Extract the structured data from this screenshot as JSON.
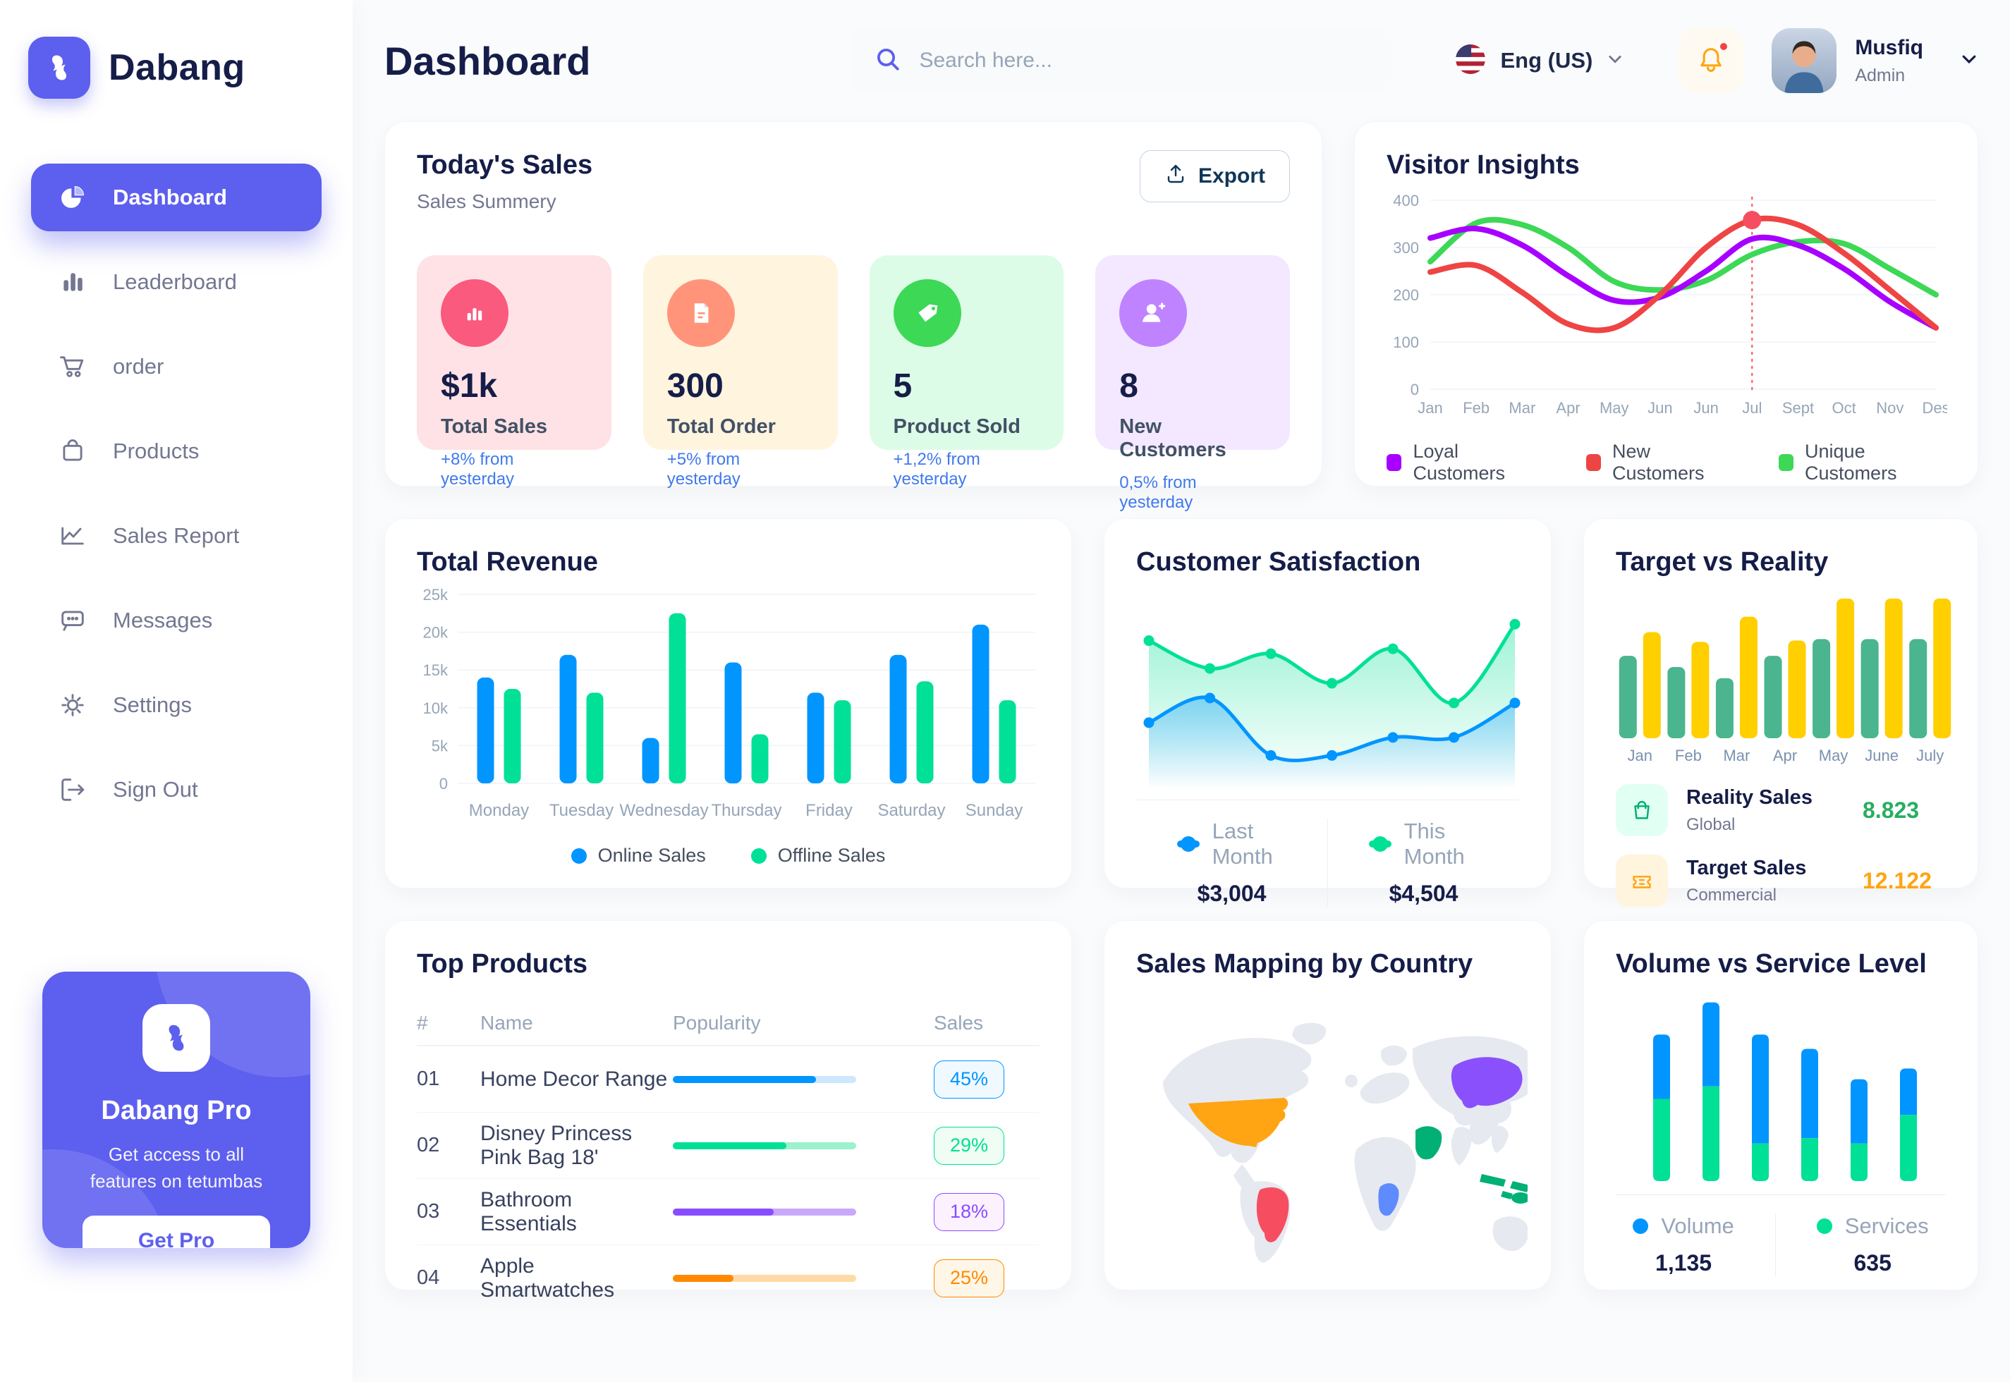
{
  "app": {
    "accent": "#5D5FEF",
    "text_dark": "#151D48",
    "text_gray": "#737791"
  },
  "sidebar": {
    "brand": "Dabang",
    "items": [
      {
        "label": "Dashboard",
        "icon": "pie-chart-icon",
        "active": true
      },
      {
        "label": "Leaderboard",
        "icon": "bar-chart-icon",
        "active": false
      },
      {
        "label": "order",
        "icon": "cart-icon",
        "active": false
      },
      {
        "label": "Products",
        "icon": "bag-icon",
        "active": false
      },
      {
        "label": "Sales Report",
        "icon": "line-chart-icon",
        "active": false
      },
      {
        "label": "Messages",
        "icon": "message-icon",
        "active": false
      },
      {
        "label": "Settings",
        "icon": "gear-icon",
        "active": false
      },
      {
        "label": "Sign Out",
        "icon": "sign-out-icon",
        "active": false
      }
    ],
    "pro_card": {
      "title": "Dabang Pro",
      "description": "Get access to all features on tetumbas",
      "button_label": "Get Pro"
    }
  },
  "header": {
    "title": "Dashboard",
    "search_placeholder": "Search here...",
    "language": "Eng (US)",
    "user_name": "Musfiq",
    "user_role": "Admin"
  },
  "todays_sales": {
    "title": "Today's Sales",
    "subtitle": "Sales Summery",
    "export_label": "Export",
    "stats": [
      {
        "value": "$1k",
        "label": "Total Sales",
        "delta": "+8% from yesterday",
        "bg": "#FFE2E5",
        "icon_bg": "#FA5A7D",
        "icon": "stats-icon"
      },
      {
        "value": "300",
        "label": "Total Order",
        "delta": "+5% from yesterday",
        "bg": "#FFF4DE",
        "icon_bg": "#FF947A",
        "icon": "orders-icon"
      },
      {
        "value": "5",
        "label": "Product Sold",
        "delta": "+1,2% from yesterday",
        "bg": "#DCFCE7",
        "icon_bg": "#3CD856",
        "icon": "tag-icon"
      },
      {
        "value": "8",
        "label": "New Customers",
        "delta": "0,5% from yesterday",
        "bg": "#F3E8FF",
        "icon_bg": "#BF83FF",
        "icon": "new-customer-icon"
      }
    ]
  },
  "visitor_insights": {
    "title": "Visitor Insights"
  },
  "total_revenue": {
    "title": "Total Revenue"
  },
  "customer_satisfaction": {
    "title": "Customer Satisfaction",
    "legend": [
      {
        "label": "Last Month",
        "value": "$3,004",
        "color": "#0095FF"
      },
      {
        "label": "This Month",
        "value": "$4,504",
        "color": "#00E096"
      }
    ]
  },
  "target_vs_reality": {
    "title": "Target vs Reality",
    "legend": [
      {
        "title": "Reality Sales",
        "subtitle": "Global",
        "value": "8.823",
        "value_color": "#27AE60",
        "icon_bg": "#E2FFF3",
        "icon": "shopping-bag-icon"
      },
      {
        "title": "Target Sales",
        "subtitle": "Commercial",
        "value": "12.122",
        "value_color": "#FFA412",
        "icon_bg": "#FFF4DE",
        "icon": "ticket-icon"
      }
    ]
  },
  "top_products": {
    "title": "Top Products",
    "columns": [
      "#",
      "Name",
      "Popularity",
      "Sales"
    ],
    "rows": [
      {
        "num": "01",
        "name": "Home Decor Range",
        "popularity": 78,
        "sales": "45%",
        "color": "#0095FF",
        "track": "#CDE7FF",
        "badge_bg": "#F0F9FF"
      },
      {
        "num": "02",
        "name": "Disney Princess Pink Bag 18'",
        "popularity": 62,
        "sales": "29%",
        "color": "#00E096",
        "track": "#9BF2CD",
        "badge_bg": "#F0FDF4"
      },
      {
        "num": "03",
        "name": "Bathroom Essentials",
        "popularity": 55,
        "sales": "18%",
        "color": "#884DFF",
        "track": "#C9A8FA",
        "badge_bg": "#FBF1FF"
      },
      {
        "num": "04",
        "name": "Apple Smartwatches",
        "popularity": 33,
        "sales": "25%",
        "color": "#FF8900",
        "track": "#FFD9A6",
        "badge_bg": "#FEF6E6"
      }
    ]
  },
  "sales_map": {
    "title": "Sales Mapping by Country",
    "countries": [
      {
        "id": "usa",
        "name": "United States",
        "color": "#FFA412"
      },
      {
        "id": "brazil",
        "name": "Brazil",
        "color": "#F64E60"
      },
      {
        "id": "saudi",
        "name": "Saudi Arabia",
        "color": "#00B074"
      },
      {
        "id": "congo",
        "name": "DR Congo",
        "color": "#5E8BFF"
      },
      {
        "id": "china",
        "name": "China",
        "color": "#8950FC"
      },
      {
        "id": "indonesia",
        "name": "Indonesia",
        "color": "#00B074"
      }
    ]
  },
  "volume_service": {
    "title": "Volume vs Service Level",
    "legend": [
      {
        "label": "Volume",
        "value": "1,135",
        "color": "#0095FF"
      },
      {
        "label": "Services",
        "value": "635",
        "color": "#00E096"
      }
    ]
  },
  "chart_data": [
    {
      "id": "visitor_insights",
      "type": "line",
      "title": "Visitor Insights",
      "x": [
        "Jan",
        "Feb",
        "Mar",
        "Apr",
        "May",
        "Jun",
        "Jun",
        "Jul",
        "Sept",
        "Oct",
        "Nov",
        "Des"
      ],
      "ylim": [
        0,
        400
      ],
      "yticks": [
        0,
        100,
        200,
        300,
        400
      ],
      "grid": true,
      "legend_position": "bottom",
      "series": [
        {
          "name": "Loyal Customers",
          "color": "#A700FF",
          "values": [
            320,
            340,
            305,
            240,
            188,
            195,
            250,
            318,
            305,
            255,
            185,
            130
          ]
        },
        {
          "name": "New Customers",
          "color": "#EF4444",
          "values": [
            248,
            262,
            205,
            138,
            130,
            200,
            300,
            358,
            348,
            288,
            210,
            130
          ]
        },
        {
          "name": "Unique Customers",
          "color": "#3CD856",
          "values": [
            270,
            352,
            348,
            300,
            228,
            210,
            230,
            285,
            312,
            308,
            255,
            200
          ]
        }
      ],
      "marker": {
        "series": "New Customers",
        "x_index": 7,
        "value": 358,
        "color": "#F64E60"
      }
    },
    {
      "id": "total_revenue",
      "type": "bar",
      "title": "Total Revenue",
      "categories": [
        "Monday",
        "Tuesday",
        "Wednesday",
        "Thursday",
        "Friday",
        "Saturday",
        "Sunday"
      ],
      "ylim": [
        0,
        25
      ],
      "yticks_values": [
        0,
        5,
        10,
        15,
        20,
        25
      ],
      "yticks_labels": [
        "0",
        "5k",
        "10k",
        "15k",
        "20k",
        "25k"
      ],
      "ylabel": "",
      "grid": true,
      "legend_position": "bottom",
      "series": [
        {
          "name": "Online Sales",
          "color": "#0095FF",
          "values": [
            14,
            17,
            6,
            16,
            12,
            17,
            21
          ]
        },
        {
          "name": "Offline Sales",
          "color": "#00E096",
          "values": [
            12.5,
            12,
            22.5,
            6.5,
            11,
            13.5,
            11
          ]
        }
      ]
    },
    {
      "id": "customer_satisfaction",
      "type": "area",
      "title": "Customer Satisfaction",
      "ylim": [
        0,
        110
      ],
      "grid": false,
      "series": [
        {
          "name": "Last Month",
          "color": "#0095FF",
          "total": "$3,004",
          "values": [
            37,
            52,
            17,
            17,
            28,
            28,
            49
          ]
        },
        {
          "name": "This Month",
          "color": "#00E096",
          "total": "$4,504",
          "values": [
            87,
            70,
            79,
            61,
            82,
            49,
            97
          ]
        }
      ]
    },
    {
      "id": "target_vs_reality",
      "type": "bar",
      "title": "Target vs Reality",
      "categories": [
        "Jan",
        "Feb",
        "Mar",
        "Apr",
        "May",
        "June",
        "July"
      ],
      "ylim": [
        0,
        105
      ],
      "grid": false,
      "series": [
        {
          "name": "Reality Sales",
          "color": "#4AB58E",
          "values": [
            59,
            51,
            43,
            59,
            71,
            71,
            71
          ]
        },
        {
          "name": "Target Sales",
          "color": "#FFCF00",
          "values": [
            76,
            69,
            87,
            70,
            100,
            100,
            100
          ]
        }
      ]
    },
    {
      "id": "volume_service",
      "type": "stacked-bar",
      "title": "Volume vs Service Level",
      "ylim": [
        0,
        105
      ],
      "grid": false,
      "series": [
        {
          "name": "Services",
          "color": "#00E096",
          "total": "635",
          "values": [
            46,
            53,
            21,
            24,
            21,
            37
          ]
        },
        {
          "name": "Volume",
          "color": "#0095FF",
          "total": "1,135",
          "values": [
            36,
            47,
            61,
            50,
            36,
            26
          ]
        }
      ]
    }
  ]
}
